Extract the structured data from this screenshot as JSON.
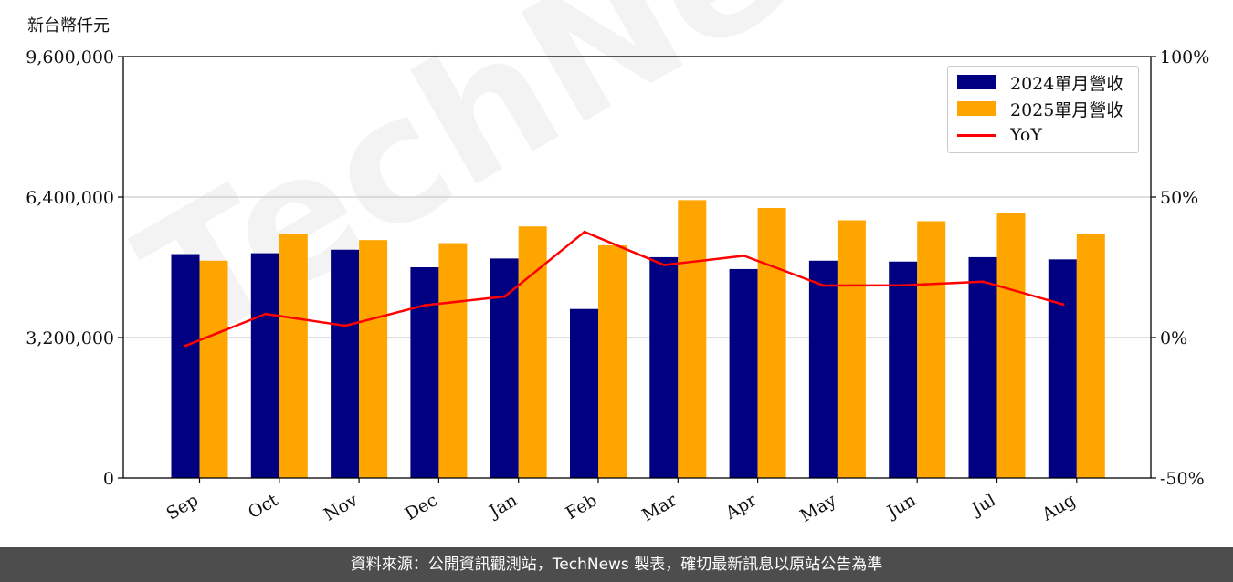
{
  "unit_label": "新台幣仟元",
  "footer": "資料來源：公開資訊觀測站，TechNews 製表，確切最新訊息以原站公告為準",
  "watermark": "TechNews",
  "chart_data": {
    "type": "bar",
    "categories": [
      "Sep",
      "Oct",
      "Nov",
      "Dec",
      "Jan",
      "Feb",
      "Mar",
      "Apr",
      "May",
      "Jun",
      "Jul",
      "Aug"
    ],
    "series": [
      {
        "name": "2024單月營收",
        "type": "bar",
        "color": "#000080",
        "values": [
          5100000,
          5120000,
          5200000,
          4800000,
          5000000,
          3850000,
          5030000,
          4760000,
          4950000,
          4930000,
          5030000,
          4980000
        ]
      },
      {
        "name": "2025單月營收",
        "type": "bar",
        "color": "#FFA500",
        "values": [
          4950000,
          5550000,
          5420000,
          5350000,
          5730000,
          5300000,
          6330000,
          6150000,
          5870000,
          5850000,
          6030000,
          5570000
        ]
      },
      {
        "name": "YoY",
        "type": "line",
        "axis": "right",
        "color": "#FF0000",
        "values": [
          -2.9,
          8.4,
          4.2,
          11.5,
          14.6,
          37.6,
          25.8,
          29.1,
          18.5,
          18.6,
          19.9,
          11.8
        ]
      }
    ],
    "y_left": {
      "ylim": [
        0,
        9600000
      ],
      "ticks": [
        "0",
        "3,200,000",
        "6,400,000",
        "9,600,000"
      ],
      "tick_values": [
        0,
        3200000,
        6400000,
        9600000
      ]
    },
    "y_right": {
      "ylim": [
        -50,
        100
      ],
      "ticks": [
        "-50%",
        "0%",
        "50%",
        "100%"
      ],
      "tick_values": [
        -50,
        0,
        50,
        100
      ]
    },
    "grid": "horizontal",
    "legend": "top-right"
  }
}
